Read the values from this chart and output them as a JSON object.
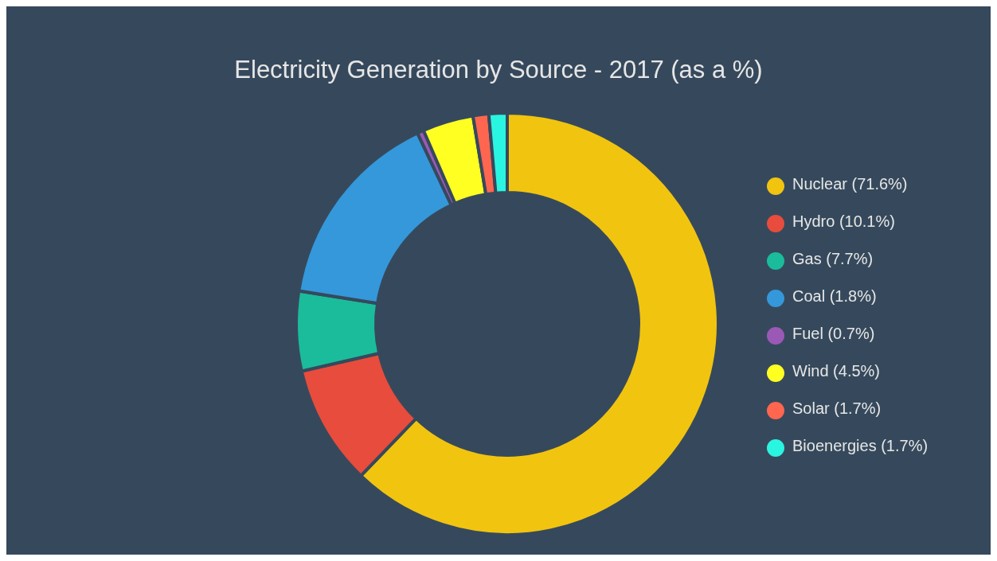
{
  "chart_data": {
    "type": "donut",
    "title": "Electricity Generation by Source - 2017 (as a %)",
    "categories": [
      "Nuclear (71.6%)",
      "Hydro (10.1%)",
      "Gas (7.7%)",
      "Coal (1.8%)",
      "Fuel (0.7%)",
      "Wind (4.5%)",
      "Solar (1.7%)",
      "Bioenergies (1.7%)"
    ],
    "values": [
      62.2,
      9.2,
      6.1,
      15.5,
      0.5,
      3.9,
      1.2,
      1.4
    ],
    "colors": [
      "#f1c40f",
      "#e74c3c",
      "#1abc9c",
      "#3498db",
      "#9b59b6",
      "#ffff22",
      "#ff6650",
      "#2af5e0"
    ],
    "legend": "right"
  }
}
